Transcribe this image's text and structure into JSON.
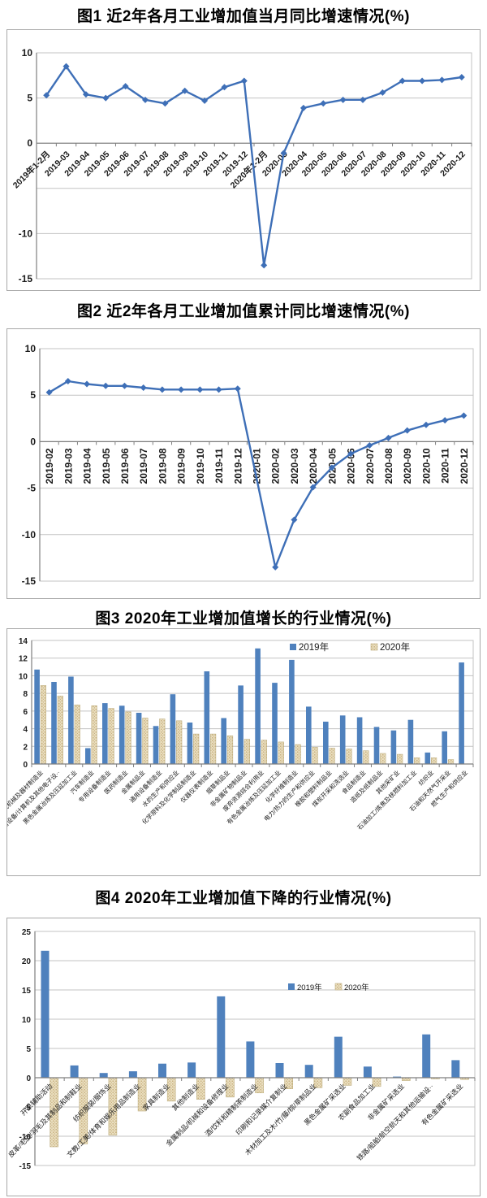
{
  "figures": [
    {
      "title": "图1 近2年各月工业增加值当月同比增速情况(%)"
    },
    {
      "title": "图2 近2年各月工业增加值累计同比增速情况(%)"
    },
    {
      "title": "图3 2020年工业增加值增长的行业情况(%)"
    },
    {
      "title": "图4 2020年工业增加值下降的行业情况(%)"
    }
  ],
  "colors": {
    "line": "#3E6FB7",
    "bar_2019": "#4F81BD",
    "bar_2020_base": "#EADFC0",
    "bar_2020_dot": "#C9B282",
    "bar_2020_border": "#BFAE7F",
    "grid": "#C3C3C3",
    "axis": "#7F7F7F",
    "tick_text": "#1a1a1a",
    "negative_tick_text": "#E00000"
  },
  "chart_data": [
    {
      "type": "line",
      "title": "图1 近2年各月工业增加值当月同比增速情况(%)",
      "ylim": [
        -15,
        10
      ],
      "grid_step": 5,
      "ytick_labels": [
        10,
        5,
        0,
        -10,
        -15
      ],
      "xlabel_style": "diagonal",
      "categories": [
        "2019年1-2月",
        "2019-03",
        "2019-04",
        "2019-05",
        "2019-06",
        "2019-07",
        "2019-08",
        "2019-09",
        "2019-10",
        "2019-11",
        "2019-12",
        "2020年1-2月",
        "2020-03",
        "2020-04",
        "2020-05",
        "2020-06",
        "2020-07",
        "2020-08",
        "2020-09",
        "2020-10",
        "2020-11",
        "2020-12"
      ],
      "values": [
        5.3,
        8.5,
        5.4,
        5.0,
        6.3,
        4.8,
        4.4,
        5.8,
        4.7,
        6.2,
        6.9,
        -13.5,
        -1.1,
        3.9,
        4.4,
        4.8,
        4.8,
        5.6,
        6.9,
        6.9,
        7.0,
        7.3
      ]
    },
    {
      "type": "line",
      "title": "图2 近2年各月工业增加值累计同比增速情况(%)",
      "ylim": [
        -15,
        10
      ],
      "grid_step": 5,
      "ytick_labels": [
        10,
        5,
        0,
        -5,
        -10,
        -15
      ],
      "xlabel_style": "vertical",
      "categories": [
        "2019-02",
        "2019-03",
        "2019-04",
        "2019-05",
        "2019-06",
        "2019-07",
        "2019-08",
        "2019-09",
        "2019-10",
        "2019-11",
        "2019-12",
        "2020-01",
        "2020-02",
        "2020-03",
        "2020-04",
        "2020-05",
        "2020-06",
        "2020-07",
        "2020-08",
        "2020-09",
        "2020-10",
        "2020-11",
        "2020-12"
      ],
      "values": [
        5.3,
        6.5,
        6.2,
        6.0,
        6.0,
        5.8,
        5.6,
        5.6,
        5.6,
        5.6,
        5.7,
        null,
        -13.5,
        -8.4,
        -4.9,
        -2.8,
        -1.3,
        -0.4,
        0.4,
        1.2,
        1.8,
        2.3,
        2.8
      ]
    },
    {
      "type": "bar",
      "title": "图3 2020年工业增加值增长的行业情况(%)",
      "ylim": [
        0,
        14
      ],
      "grid_step": 2,
      "ytick_labels": [
        14,
        12,
        10,
        8,
        6,
        4,
        2,
        0
      ],
      "negative_red": false,
      "legend_position": "top-right",
      "categories": [
        "电气机械及器材制造业",
        "通信设备/计算机及其他电子设··",
        "黑色金属冶炼及压延加工业",
        "汽车制造业",
        "专用设备制造业",
        "医药制造业",
        "金属制品业",
        "通用设备制造业",
        "水的生产和供应业",
        "化学原料及化学制品制造业",
        "仪器仪表制造业",
        "烟草制品业",
        "非金属矿物制品业",
        "废弃资源综合利用业",
        "有色金属冶炼及压延加工业",
        "化学纤维制造业",
        "电力/热力的生产和供应业",
        "橡胶和塑料制品业",
        "煤炭开采和洗选业",
        "食品制造业",
        "造纸及纸制品业",
        "其他采矿业",
        "石油加工/炼焦及核燃料加工业",
        "纺织业",
        "石油和天然气开采业",
        "燃气生产和供应业"
      ],
      "series": [
        {
          "name": "2019年",
          "values": [
            10.7,
            9.3,
            9.9,
            1.8,
            6.9,
            6.6,
            5.8,
            4.3,
            7.9,
            4.7,
            10.5,
            5.2,
            8.9,
            13.1,
            9.2,
            11.8,
            6.5,
            4.8,
            5.5,
            5.3,
            4.2,
            3.8,
            5.0,
            1.3,
            3.7,
            11.5
          ]
        },
        {
          "name": "2020年",
          "values": [
            8.9,
            7.7,
            6.7,
            6.6,
            6.3,
            5.9,
            5.2,
            5.1,
            4.9,
            3.4,
            3.4,
            3.2,
            2.8,
            2.7,
            2.5,
            2.2,
            1.9,
            1.8,
            1.7,
            1.5,
            1.2,
            1.1,
            0.7,
            0.7,
            0.5,
            0
          ]
        }
      ]
    },
    {
      "type": "bar",
      "title": "图4 2020年工业增加值下降的行业情况(%)",
      "ylim": [
        -15,
        25
      ],
      "grid_step": 5,
      "ytick_labels": [
        25,
        20,
        15,
        10,
        5,
        0,
        -5,
        -10,
        -15
      ],
      "negative_red": true,
      "legend_position": "inside-right",
      "categories": [
        "开采辅助活动",
        "皮革/毛皮/羽毛及其制品和制鞋业",
        "纺织服装/服饰业",
        "文教/工美/体育和娱乐用品制造业",
        "家具制造业",
        "其他制造业",
        "金属制品/机械和设备修理业",
        "酒/饮料和精制茶制造业",
        "印刷和记录媒介复制业",
        "木材加工及木/竹/藤/棕/草制品业",
        "黑色金属矿采选业",
        "农副食品加工业",
        "非金属矿采选业",
        "铁路/船舶/航空航天和其他运输设··",
        "有色金属矿采选业"
      ],
      "series": [
        {
          "name": "2019年",
          "values": [
            21.7,
            2.1,
            0.8,
            1.1,
            2.4,
            2.6,
            13.9,
            6.2,
            2.5,
            2.2,
            7.0,
            1.9,
            0.2,
            7.4,
            3.0
          ]
        },
        {
          "name": "2020年",
          "values": [
            -11.8,
            -11.3,
            -9.8,
            -5.7,
            -4.0,
            -3.7,
            -3.3,
            -2.6,
            -1.9,
            -1.7,
            -1.3,
            -1.5,
            -0.5,
            -0.2,
            -0.3
          ]
        }
      ]
    }
  ]
}
